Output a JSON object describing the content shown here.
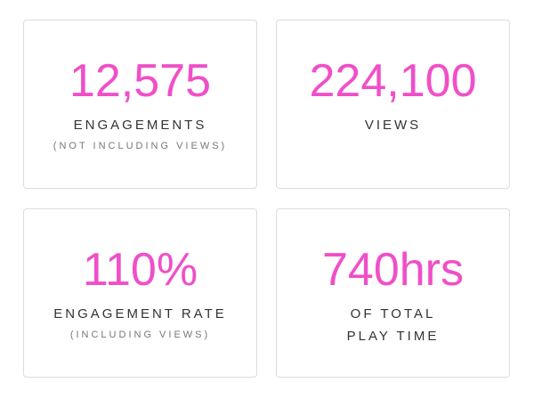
{
  "cards": [
    {
      "value": "12,575",
      "label": [
        "ENGAGEMENTS"
      ],
      "note": "(NOT INCLUDING VIEWS)"
    },
    {
      "value": "224,100",
      "label": [
        "VIEWS"
      ]
    },
    {
      "value": "110%",
      "label": [
        "ENGAGEMENT RATE"
      ],
      "note": "(INCLUDING VIEWS)"
    },
    {
      "value": "740hrs",
      "label": [
        "OF TOTAL",
        "PLAY TIME"
      ]
    }
  ]
}
